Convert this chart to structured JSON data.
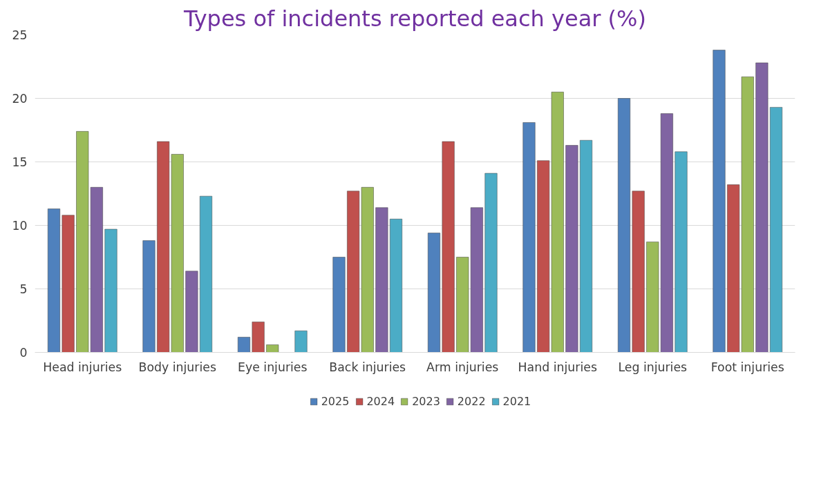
{
  "chart_data": {
    "type": "bar",
    "title": "Types of incidents reported each year (%)",
    "categories": [
      "Head injuries",
      "Body injuries",
      "Eye injuries",
      "Back injuries",
      "Arm injuries",
      "Hand injuries",
      "Leg injuries",
      "Foot injuries"
    ],
    "series": [
      {
        "name": "2025",
        "color": "#4f81bd",
        "values": [
          11.3,
          8.8,
          1.2,
          7.5,
          9.4,
          18.1,
          20.0,
          23.8
        ]
      },
      {
        "name": "2024",
        "color": "#c0504d",
        "values": [
          10.8,
          16.6,
          2.4,
          12.7,
          16.6,
          15.1,
          12.7,
          13.2
        ]
      },
      {
        "name": "2023",
        "color": "#9bbb59",
        "values": [
          17.4,
          15.6,
          0.6,
          13.0,
          7.5,
          20.5,
          8.7,
          21.7
        ]
      },
      {
        "name": "2022",
        "color": "#8064a2",
        "values": [
          13.0,
          6.4,
          null,
          11.4,
          11.4,
          16.3,
          18.8,
          22.8
        ]
      },
      {
        "name": "2021",
        "color": "#4bacc6",
        "values": [
          9.7,
          12.3,
          1.7,
          10.5,
          14.1,
          16.7,
          15.8,
          19.3
        ]
      }
    ],
    "ylim": [
      0,
      25
    ],
    "yticks": [
      0,
      5,
      10,
      15,
      20,
      25
    ],
    "grid": "y",
    "legend": "bottom"
  }
}
